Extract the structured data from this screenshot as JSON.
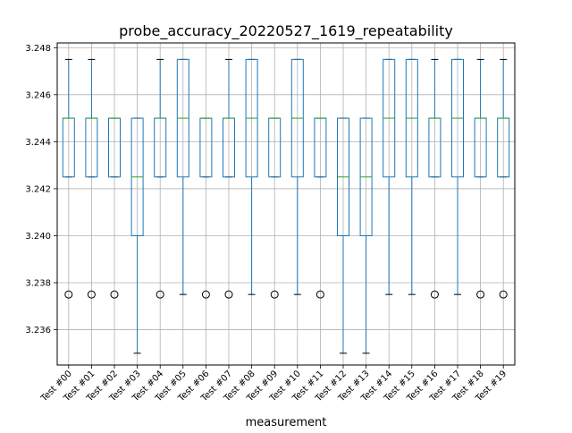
{
  "chart_data": {
    "type": "box",
    "title": "probe_accuracy_20220527_1619_repeatability",
    "xlabel": "measurement",
    "ylabel": "",
    "ylim": [
      3.2345,
      3.2482
    ],
    "yticks": [
      3.236,
      3.238,
      3.24,
      3.242,
      3.244,
      3.246,
      3.248
    ],
    "grid": true,
    "categories": [
      "Test #00",
      "Test #01",
      "Test #02",
      "Test #03",
      "Test #04",
      "Test #05",
      "Test #06",
      "Test #07",
      "Test #08",
      "Test #09",
      "Test #10",
      "Test #11",
      "Test #12",
      "Test #13",
      "Test #14",
      "Test #15",
      "Test #16",
      "Test #17",
      "Test #18",
      "Test #19"
    ],
    "boxes": [
      {
        "whislo": 3.2425,
        "q1": 3.2425,
        "med": 3.245,
        "q3": 3.245,
        "whishi": 3.2475,
        "fliers": [
          3.2375
        ]
      },
      {
        "whislo": 3.2425,
        "q1": 3.2425,
        "med": 3.245,
        "q3": 3.245,
        "whishi": 3.2475,
        "fliers": [
          3.2375
        ]
      },
      {
        "whislo": 3.2425,
        "q1": 3.2425,
        "med": 3.245,
        "q3": 3.245,
        "whishi": 3.245,
        "fliers": [
          3.2375
        ]
      },
      {
        "whislo": 3.235,
        "q1": 3.24,
        "med": 3.2425,
        "q3": 3.245,
        "whishi": 3.245,
        "fliers": []
      },
      {
        "whislo": 3.2425,
        "q1": 3.2425,
        "med": 3.245,
        "q3": 3.245,
        "whishi": 3.2475,
        "fliers": [
          3.2375
        ]
      },
      {
        "whislo": 3.2375,
        "q1": 3.2425,
        "med": 3.245,
        "q3": 3.2475,
        "whishi": 3.2475,
        "fliers": []
      },
      {
        "whislo": 3.2425,
        "q1": 3.2425,
        "med": 3.245,
        "q3": 3.245,
        "whishi": 3.245,
        "fliers": [
          3.2375
        ]
      },
      {
        "whislo": 3.2425,
        "q1": 3.2425,
        "med": 3.245,
        "q3": 3.245,
        "whishi": 3.2475,
        "fliers": [
          3.2375
        ]
      },
      {
        "whislo": 3.2375,
        "q1": 3.2425,
        "med": 3.245,
        "q3": 3.2475,
        "whishi": 3.2475,
        "fliers": []
      },
      {
        "whislo": 3.2425,
        "q1": 3.2425,
        "med": 3.245,
        "q3": 3.245,
        "whishi": 3.245,
        "fliers": [
          3.2375
        ]
      },
      {
        "whislo": 3.2375,
        "q1": 3.2425,
        "med": 3.245,
        "q3": 3.2475,
        "whishi": 3.2475,
        "fliers": []
      },
      {
        "whislo": 3.2425,
        "q1": 3.2425,
        "med": 3.245,
        "q3": 3.245,
        "whishi": 3.245,
        "fliers": [
          3.2375
        ]
      },
      {
        "whislo": 3.235,
        "q1": 3.24,
        "med": 3.2425,
        "q3": 3.245,
        "whishi": 3.245,
        "fliers": []
      },
      {
        "whislo": 3.235,
        "q1": 3.24,
        "med": 3.2425,
        "q3": 3.245,
        "whishi": 3.245,
        "fliers": []
      },
      {
        "whislo": 3.2375,
        "q1": 3.2425,
        "med": 3.245,
        "q3": 3.2475,
        "whishi": 3.2475,
        "fliers": []
      },
      {
        "whislo": 3.2375,
        "q1": 3.2425,
        "med": 3.245,
        "q3": 3.2475,
        "whishi": 3.2475,
        "fliers": []
      },
      {
        "whislo": 3.2425,
        "q1": 3.2425,
        "med": 3.245,
        "q3": 3.245,
        "whishi": 3.2475,
        "fliers": [
          3.2375
        ]
      },
      {
        "whislo": 3.2375,
        "q1": 3.2425,
        "med": 3.245,
        "q3": 3.2475,
        "whishi": 3.2475,
        "fliers": []
      },
      {
        "whislo": 3.2425,
        "q1": 3.2425,
        "med": 3.245,
        "q3": 3.245,
        "whishi": 3.2475,
        "fliers": [
          3.2375
        ]
      },
      {
        "whislo": 3.2425,
        "q1": 3.2425,
        "med": 3.245,
        "q3": 3.245,
        "whishi": 3.2475,
        "fliers": [
          3.2375
        ]
      }
    ],
    "colors": {
      "box": "#1f77b4",
      "median": "#2ca02c",
      "whisker": "#1f77b4",
      "cap": "#000000",
      "flier": "#000000",
      "grid": "#b0b0b0"
    }
  }
}
